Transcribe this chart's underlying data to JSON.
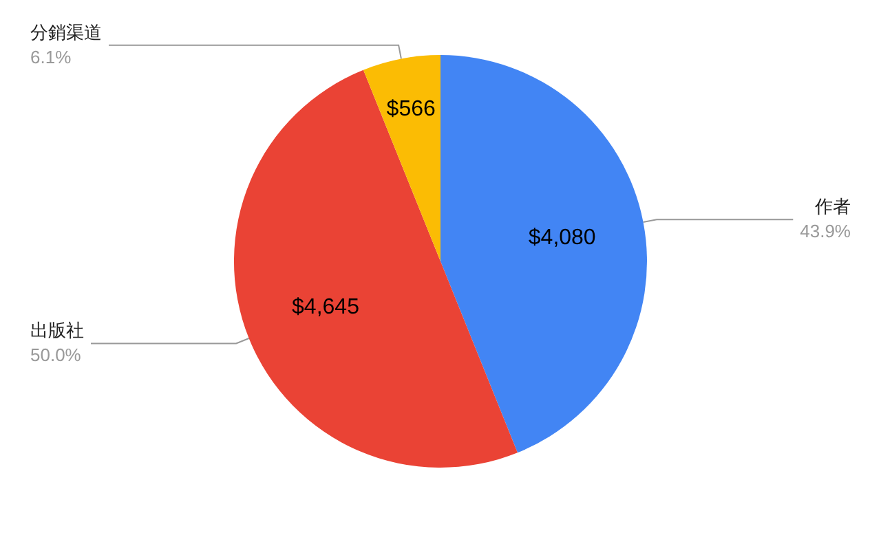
{
  "chart_data": {
    "type": "pie",
    "categories": [
      "作者",
      "出版社",
      "分銷渠道"
    ],
    "values": [
      4080,
      4645,
      566
    ],
    "colors": [
      "#4285f4",
      "#ea4335",
      "#fbbc04"
    ],
    "value_labels": [
      "$4,080",
      "$4,645",
      "$566"
    ],
    "annotations": [
      "43.9%",
      "50.0%",
      "6.1%"
    ],
    "legend": false
  }
}
